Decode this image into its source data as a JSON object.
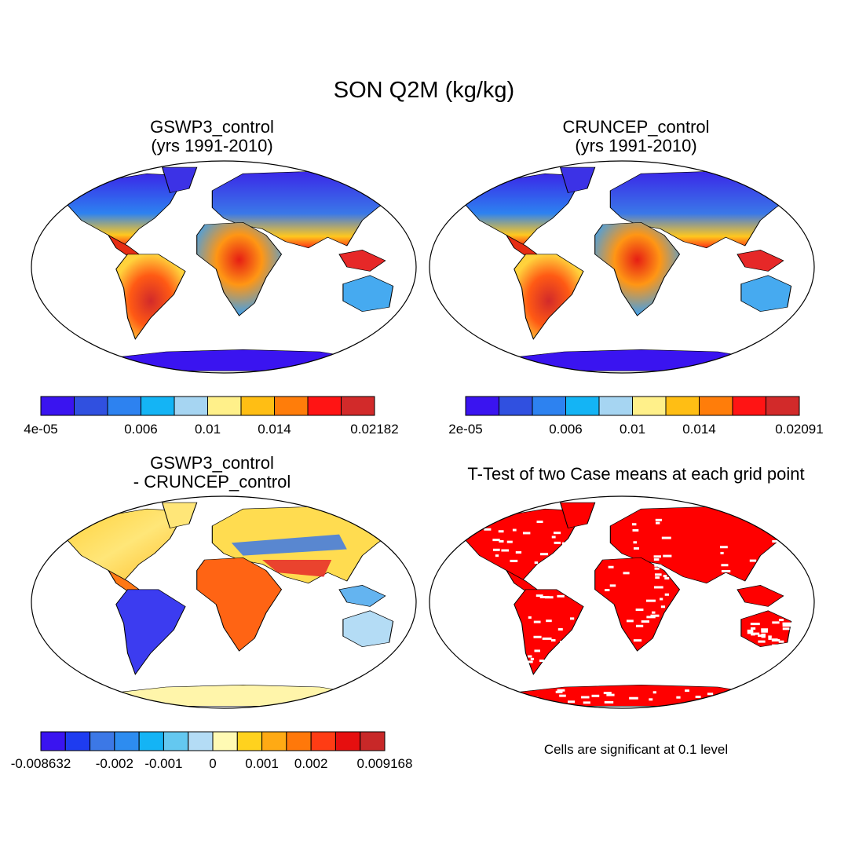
{
  "title": "SON Q2M (kg/kg)",
  "panels": [
    {
      "title_lines": [
        "GSWP3_control",
        "(yrs 1991-2010)"
      ]
    },
    {
      "title_lines": [
        "CRUNCEP_control",
        "(yrs 1991-2010)"
      ]
    },
    {
      "title_lines": [
        "GSWP3_control",
        "- CRUNCEP_control"
      ]
    },
    {
      "title_lines": [
        "T-Test of two Case means at each grid point"
      ]
    }
  ],
  "colorbars": [
    {
      "colors": [
        "#3a14f0",
        "#3050e0",
        "#2d82f0",
        "#14b4f5",
        "#a6d5f2",
        "#fff08a",
        "#ffbe14",
        "#ff7d0a",
        "#ff1414",
        "#d22a2a"
      ],
      "labels": [
        "4e-05",
        "0.006",
        "0.01",
        "0.014",
        "0.02182"
      ],
      "label_at_boundary": [
        0,
        3,
        5,
        7,
        10
      ]
    },
    {
      "colors": [
        "#3a14f0",
        "#3050e0",
        "#2d82f0",
        "#14b4f5",
        "#a6d5f2",
        "#fff08a",
        "#ffbe14",
        "#ff7d0a",
        "#ff1414",
        "#d22a2a"
      ],
      "labels": [
        "2e-05",
        "0.006",
        "0.01",
        "0.014",
        "0.02091"
      ],
      "label_at_boundary": [
        0,
        3,
        5,
        7,
        10
      ]
    },
    {
      "colors": [
        "#3a14f0",
        "#1e3cf0",
        "#3c78e6",
        "#2d8cf0",
        "#14b4f5",
        "#64c8f0",
        "#b4dcf5",
        "#fffab4",
        "#ffd21e",
        "#ffaa14",
        "#ff780a",
        "#ff3c14",
        "#e60f0f",
        "#c82828"
      ],
      "labels": [
        "-0.008632",
        "-0.002",
        "-0.001",
        "0",
        "0.001",
        "0.002",
        "0.009168"
      ],
      "label_at_boundary": [
        0,
        3,
        5,
        7,
        9,
        11,
        14
      ]
    }
  ],
  "significance_color": "#ff0000",
  "note": "Cells are significant at 0.1 level"
}
